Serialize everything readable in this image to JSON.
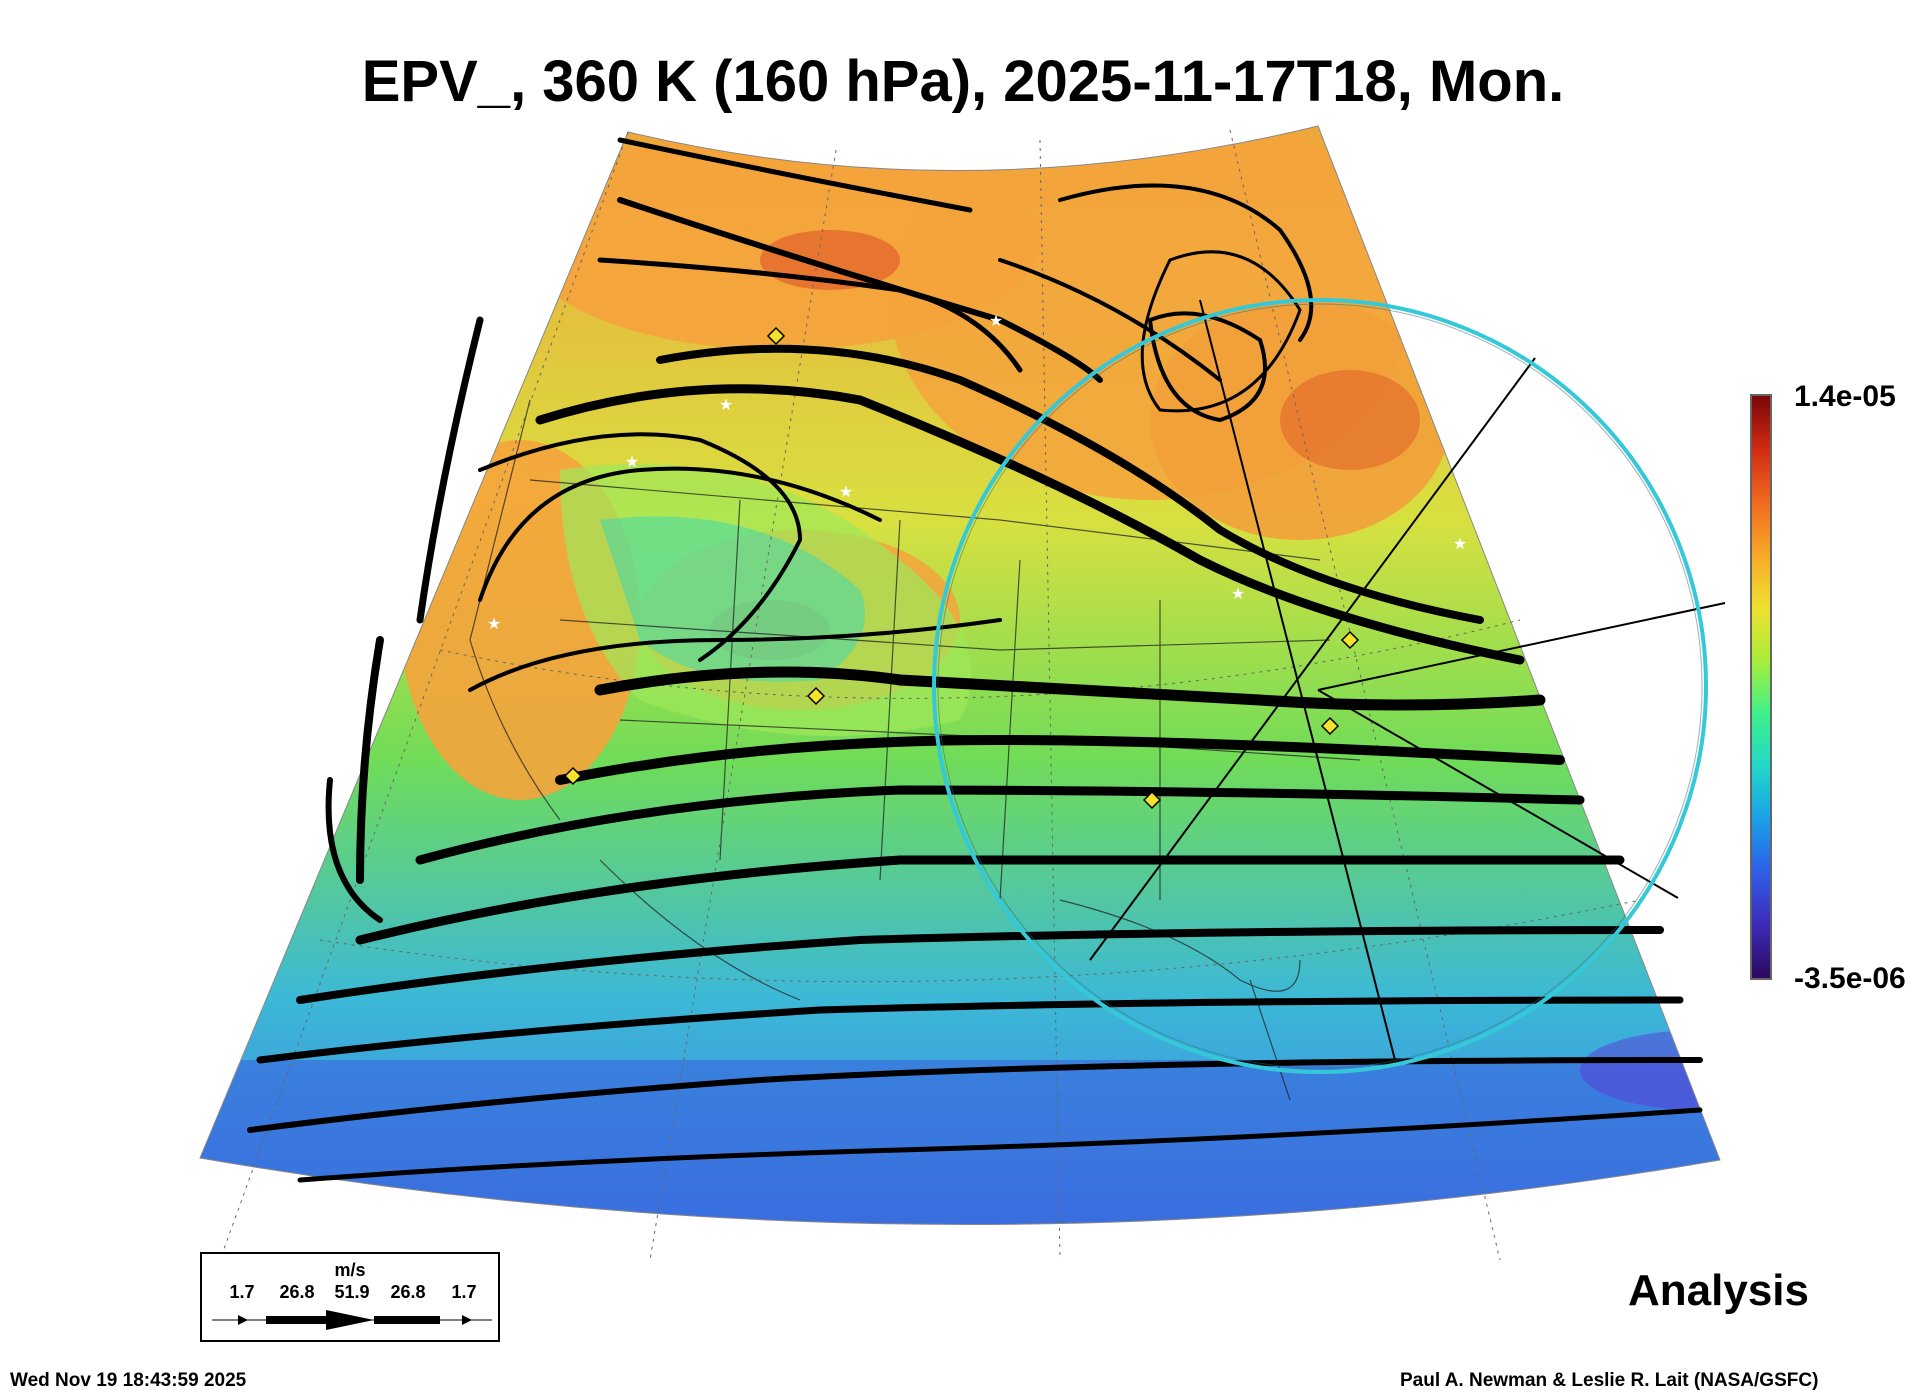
{
  "title": "EPV_, 360 K (160 hPa), 2025-11-17T18, Mon.",
  "colorbar": {
    "max_label": "1.4e-05",
    "min_label": "-3.5e-06",
    "colors": [
      "#2a0a5e",
      "#3d2ab8",
      "#2f5ee8",
      "#1aa0e8",
      "#22d8c8",
      "#3ef08a",
      "#a8ee3a",
      "#f0e030",
      "#f8a828",
      "#f06a1e",
      "#d02a14",
      "#7a0606"
    ]
  },
  "map": {
    "fill_colors": {
      "orange": "#f5a33c",
      "yellow": "#e9e23a",
      "green": "#78e048",
      "cyan": "#3cc8d0",
      "blue": "#3778e0",
      "red": "#d83a20"
    },
    "circle_color": "#35c8d8"
  },
  "wind_legend": {
    "unit": "m/s",
    "values": [
      "1.7",
      "26.8",
      "51.9",
      "26.8",
      "1.7"
    ]
  },
  "footer": {
    "analysis_label": "Analysis",
    "timestamp": "Wed Nov 19 18:43:59 2025",
    "credit": "Paul A. Newman & Leslie R. Lait (NASA/GSFC)"
  }
}
